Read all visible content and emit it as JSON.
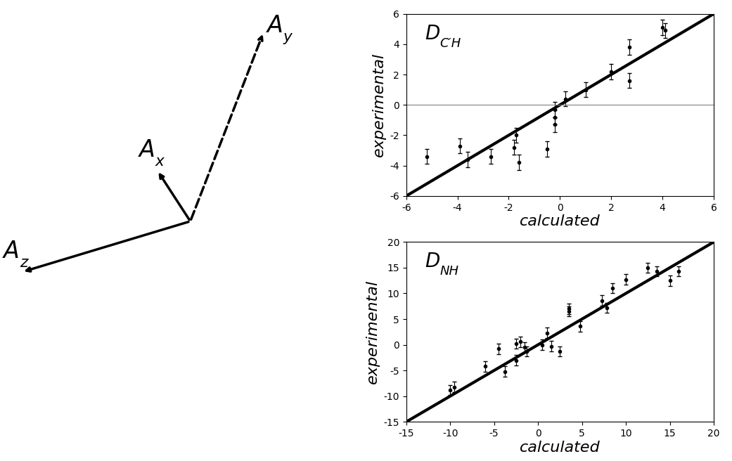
{
  "diagram": {
    "axis_labels": [
      {
        "main": "A",
        "sub": "z"
      },
      {
        "main": "A",
        "sub": "x"
      },
      {
        "main": "A",
        "sub": "y"
      }
    ]
  },
  "chart_data": [
    {
      "type": "scatter",
      "title": {
        "main": "D",
        "sub": "C′H"
      },
      "x_label": "calculated",
      "y_label": "experimental",
      "xlim": [
        -6,
        6
      ],
      "ylim": [
        -6,
        6
      ],
      "xticks": [
        -6,
        -4,
        -2,
        0,
        2,
        4,
        6
      ],
      "yticks": [
        -6,
        -4,
        -2,
        0,
        2,
        4,
        6
      ],
      "series": [
        {
          "type": "scatter",
          "color": "#000000",
          "marker": "o",
          "x": [
            -5.2,
            -3.9,
            -3.6,
            -2.7,
            -1.8,
            -1.7,
            -1.6,
            -0.5,
            -0.2,
            -0.2,
            -0.2,
            0.2,
            1.0,
            2.0,
            2.7,
            2.7,
            4.0,
            4.1
          ],
          "values": [
            -3.4,
            -2.7,
            -3.6,
            -3.4,
            -2.8,
            -2.0,
            -3.8,
            -2.9,
            -1.3,
            -0.8,
            -0.3,
            0.4,
            1.0,
            2.2,
            3.8,
            1.6,
            5.1,
            4.9
          ],
          "errors": [
            0.5,
            0.5,
            0.5,
            0.5,
            0.5,
            0.5,
            0.5,
            0.5,
            0.5,
            0.5,
            0.5,
            0.5,
            0.5,
            0.5,
            0.5,
            0.5,
            0.5,
            0.5
          ]
        },
        {
          "type": "line",
          "color": "#000000",
          "line_style": "solid",
          "x": [
            -6,
            6
          ],
          "values": [
            -6,
            6
          ]
        },
        {
          "type": "line",
          "color": "#808080",
          "line_style": "solid",
          "x": [
            -6,
            6
          ],
          "values": [
            0,
            0
          ]
        }
      ]
    },
    {
      "type": "scatter",
      "title": {
        "main": "D",
        "sub": "NH"
      },
      "x_label": "calculated",
      "y_label": "experimental",
      "xlim": [
        -15,
        20
      ],
      "ylim": [
        -15,
        20
      ],
      "xticks": [
        -15,
        -10,
        -5,
        0,
        5,
        10,
        15,
        20
      ],
      "yticks": [
        -15,
        -10,
        -5,
        0,
        5,
        10,
        15,
        20
      ],
      "series": [
        {
          "type": "scatter",
          "color": "#000000",
          "marker": "o",
          "x": [
            -10,
            -9.5,
            -6,
            -4.5,
            -3.8,
            -2.5,
            -2.5,
            -2,
            -1.5,
            -1.3,
            0.5,
            1,
            1.5,
            2.5,
            3.5,
            3.5,
            4.8,
            7.3,
            7.8,
            8.5,
            10,
            12.5,
            13.5,
            15,
            16
          ],
          "values": [
            -8.8,
            -8.2,
            -4.2,
            -0.8,
            -5.2,
            -3,
            0.2,
            0.6,
            -0.5,
            -1.3,
            0,
            2.3,
            -0.3,
            -1.3,
            6.5,
            7,
            3.6,
            8.6,
            7.2,
            11,
            12.7,
            15,
            14.3,
            12.5,
            14.3
          ],
          "errors": [
            1,
            1,
            1,
            1,
            1,
            1,
            1,
            1,
            1,
            1,
            1,
            1,
            1,
            1,
            1,
            1,
            1,
            1,
            1,
            1,
            1,
            1,
            1,
            1,
            1
          ]
        },
        {
          "type": "line",
          "color": "#000000",
          "line_style": "solid",
          "x": [
            -15,
            20
          ],
          "values": [
            -15,
            20
          ]
        }
      ]
    }
  ]
}
